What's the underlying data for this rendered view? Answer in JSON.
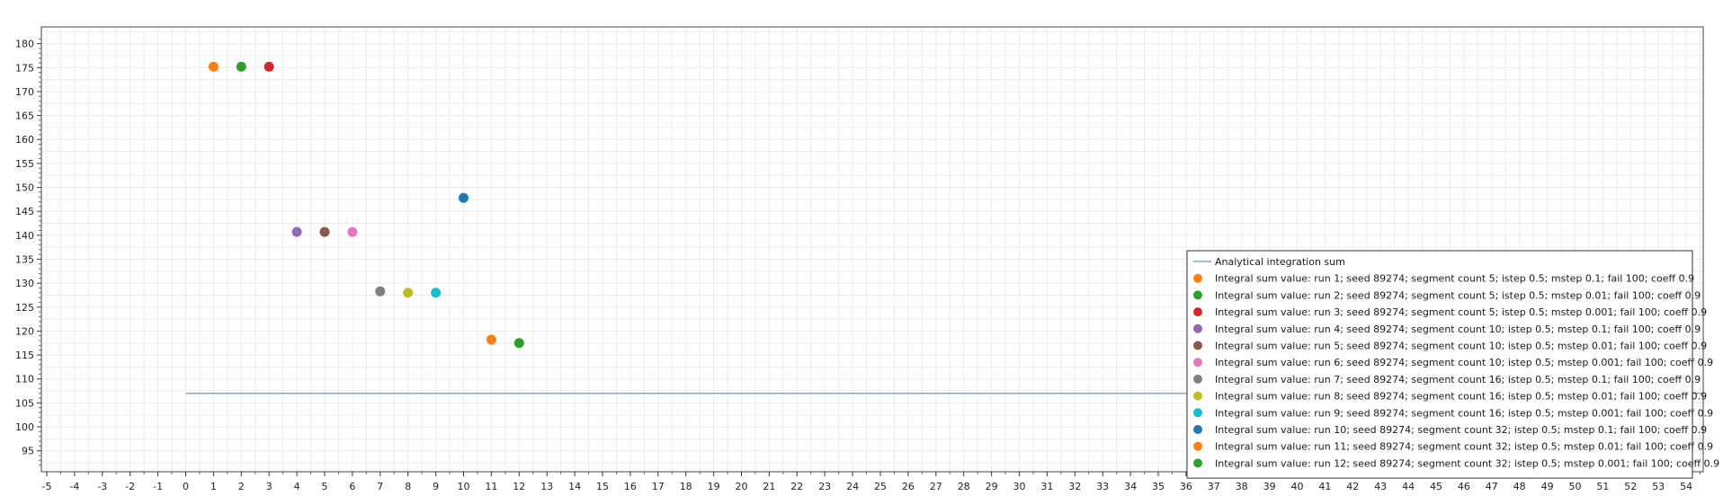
{
  "chart_data": {
    "type": "scatter",
    "xlim": [
      -5,
      54
    ],
    "ylim": [
      91,
      181
    ],
    "x_ticks": [
      -5,
      -4,
      -3,
      -2,
      -1,
      0,
      1,
      2,
      3,
      4,
      5,
      6,
      7,
      8,
      9,
      10,
      11,
      12,
      13,
      14,
      15,
      16,
      17,
      18,
      19,
      20,
      21,
      22,
      23,
      24,
      25,
      26,
      27,
      28,
      29,
      30,
      31,
      32,
      33,
      34,
      35,
      36,
      37,
      38,
      39,
      40,
      41,
      42,
      43,
      44,
      45,
      46,
      47,
      48,
      49,
      50,
      51,
      52,
      53,
      54
    ],
    "y_ticks": [
      95,
      100,
      105,
      110,
      115,
      120,
      125,
      130,
      135,
      140,
      145,
      150,
      155,
      160,
      165,
      170,
      175,
      180
    ],
    "grid": true,
    "legend_position": "bottom-right",
    "reference_line": {
      "name": "Analytical integration sum",
      "y": 107,
      "x_start": 0,
      "color": "#5b9bd5"
    },
    "series": [
      {
        "name": "Integral sum value: run 1; seed 89274; segment count 5; istep 0.5; mstep 0.1; fail 100; coeff 0.9",
        "x": 1,
        "y": 175.2,
        "color": "#ff7f0e"
      },
      {
        "name": "Integral sum value: run 2; seed 89274; segment count 5; istep 0.5; mstep 0.01; fail 100; coeff 0.9",
        "x": 2,
        "y": 175.2,
        "color": "#2ca02c"
      },
      {
        "name": "Integral sum value: run 3; seed 89274; segment count 5; istep 0.5; mstep 0.001; fail 100; coeff 0.9",
        "x": 3,
        "y": 175.2,
        "color": "#d62728"
      },
      {
        "name": "Integral sum value: run 4; seed 89274; segment count 10; istep 0.5; mstep 0.1; fail 100; coeff 0.9",
        "x": 4,
        "y": 140.7,
        "color": "#9467bd"
      },
      {
        "name": "Integral sum value: run 5; seed 89274; segment count 10; istep 0.5; mstep 0.01; fail 100; coeff 0.9",
        "x": 5,
        "y": 140.7,
        "color": "#8c564b"
      },
      {
        "name": "Integral sum value: run 6; seed 89274; segment count 10; istep 0.5; mstep 0.001; fail 100; coeff 0.9",
        "x": 6,
        "y": 140.7,
        "color": "#e377c2"
      },
      {
        "name": "Integral sum value: run 7; seed 89274; segment count 16; istep 0.5; mstep 0.1; fail 100; coeff 0.9",
        "x": 7,
        "y": 128.3,
        "color": "#7f7f7f"
      },
      {
        "name": "Integral sum value: run 8; seed 89274; segment count 16; istep 0.5; mstep 0.01; fail 100; coeff 0.9",
        "x": 8,
        "y": 128.0,
        "color": "#bcbd22"
      },
      {
        "name": "Integral sum value: run 9; seed 89274; segment count 16; istep 0.5; mstep 0.001; fail 100; coeff 0.9",
        "x": 9,
        "y": 128.0,
        "color": "#17becf"
      },
      {
        "name": "Integral sum value: run 10; seed 89274; segment count 32; istep 0.5; mstep 0.1; fail 100; coeff 0.9",
        "x": 10,
        "y": 147.8,
        "color": "#1f77b4"
      },
      {
        "name": "Integral sum value: run 11; seed 89274; segment count 32; istep 0.5; mstep 0.01; fail 100; coeff 0.9",
        "x": 11,
        "y": 118.2,
        "color": "#ff7f0e"
      },
      {
        "name": "Integral sum value: run 12; seed 89274; segment count 32; istep 0.5; mstep 0.001; fail 100; coeff 0.9",
        "x": 12,
        "y": 117.5,
        "color": "#2ca02c"
      }
    ]
  }
}
